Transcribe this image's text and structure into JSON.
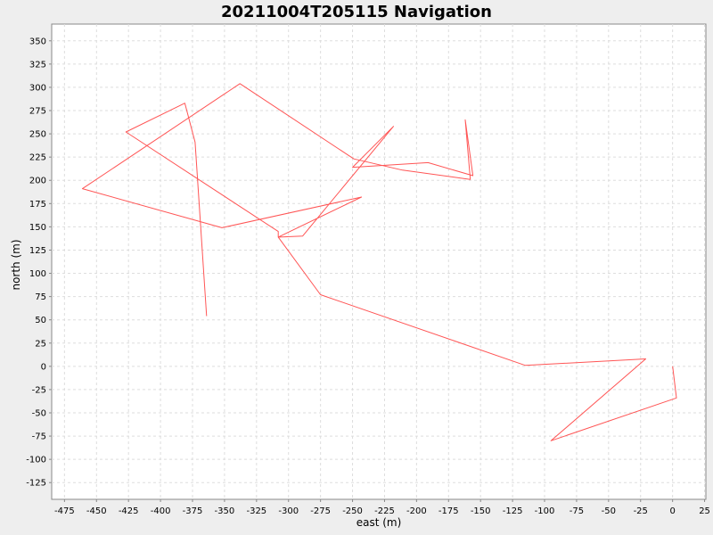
{
  "chart_data": {
    "type": "line",
    "title": "20211004T205115 Navigation",
    "xlabel": "east (m)",
    "ylabel": "north (m)",
    "xlim": [
      -485,
      26
    ],
    "ylim": [
      -143,
      368
    ],
    "grid": true,
    "xticks": [
      -475,
      -450,
      -425,
      -400,
      -375,
      -350,
      -325,
      -300,
      -275,
      -250,
      -225,
      -200,
      -175,
      -150,
      -125,
      -100,
      -75,
      -50,
      -25,
      0,
      25
    ],
    "yticks": [
      -125,
      -100,
      -75,
      -50,
      -25,
      0,
      25,
      50,
      75,
      100,
      125,
      150,
      175,
      200,
      225,
      250,
      275,
      300,
      325,
      350
    ],
    "series": [
      {
        "color": "#ff5555",
        "x": [
          -364,
          -373,
          -381,
          -427,
          -308,
          -308,
          -307,
          -289,
          -218,
          -250,
          -191,
          -156,
          -162,
          -158,
          -211,
          -249,
          -338,
          -461,
          -352,
          -243,
          -308,
          -275,
          -115,
          -21,
          -95,
          3,
          0
        ],
        "y": [
          54,
          241,
          283,
          252,
          145,
          139,
          139,
          140,
          258,
          214,
          219,
          205,
          265,
          201,
          211,
          223,
          304,
          191,
          149,
          182,
          139,
          77,
          1,
          8,
          -80,
          -34,
          0
        ]
      }
    ]
  }
}
